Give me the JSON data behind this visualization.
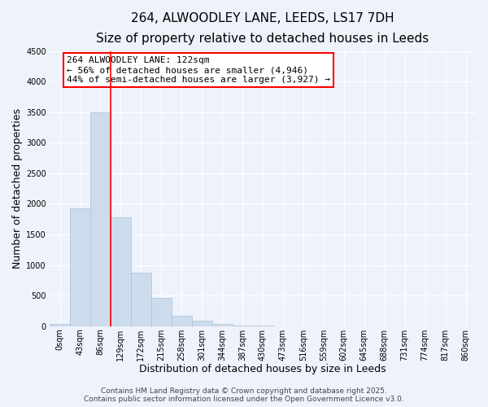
{
  "title": "264, ALWOODLEY LANE, LEEDS, LS17 7DH",
  "subtitle": "Size of property relative to detached houses in Leeds",
  "xlabel": "Distribution of detached houses by size in Leeds",
  "ylabel": "Number of detached properties",
  "bar_labels": [
    "0sqm",
    "43sqm",
    "86sqm",
    "129sqm",
    "172sqm",
    "215sqm",
    "258sqm",
    "301sqm",
    "344sqm",
    "387sqm",
    "430sqm",
    "473sqm",
    "516sqm",
    "559sqm",
    "602sqm",
    "645sqm",
    "688sqm",
    "731sqm",
    "774sqm",
    "817sqm",
    "860sqm"
  ],
  "bar_values": [
    30,
    1930,
    3500,
    1780,
    870,
    460,
    175,
    85,
    35,
    15,
    5,
    0,
    0,
    0,
    0,
    0,
    0,
    0,
    0,
    0,
    0
  ],
  "bar_color": "#ccdcec",
  "bar_edgecolor": "#aac0d8",
  "vline_x": 3,
  "vline_color": "red",
  "ylim": [
    0,
    4500
  ],
  "yticks": [
    0,
    500,
    1000,
    1500,
    2000,
    2500,
    3000,
    3500,
    4000,
    4500
  ],
  "annotation_title": "264 ALWOODLEY LANE: 122sqm",
  "annotation_line2": "← 56% of detached houses are smaller (4,946)",
  "annotation_line3": "44% of semi-detached houses are larger (3,927) →",
  "annotation_box_facecolor": "white",
  "annotation_box_edgecolor": "red",
  "footer_line1": "Contains HM Land Registry data © Crown copyright and database right 2025.",
  "footer_line2": "Contains public sector information licensed under the Open Government Licence v3.0.",
  "background_color": "#eef2fb",
  "grid_color": "white",
  "title_fontsize": 11,
  "subtitle_fontsize": 9.5,
  "axis_label_fontsize": 9,
  "tick_fontsize": 7,
  "annotation_fontsize": 8,
  "footer_fontsize": 6.5
}
